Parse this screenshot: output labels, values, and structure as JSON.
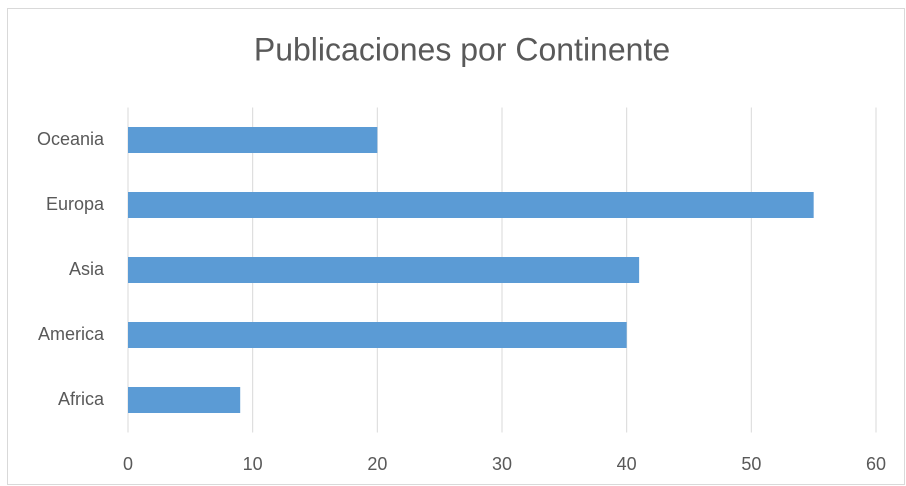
{
  "chart_data": {
    "type": "barh",
    "title": "Publicaciones por Continente",
    "categories": [
      "Africa",
      "America",
      "Asia",
      "Europa",
      "Oceania"
    ],
    "values": [
      9,
      40,
      41,
      55,
      20
    ],
    "color": "#5b9bd5",
    "xlim": [
      0,
      60
    ],
    "xticks": [
      0,
      10,
      20,
      30,
      40,
      50,
      60
    ],
    "grid": true
  }
}
